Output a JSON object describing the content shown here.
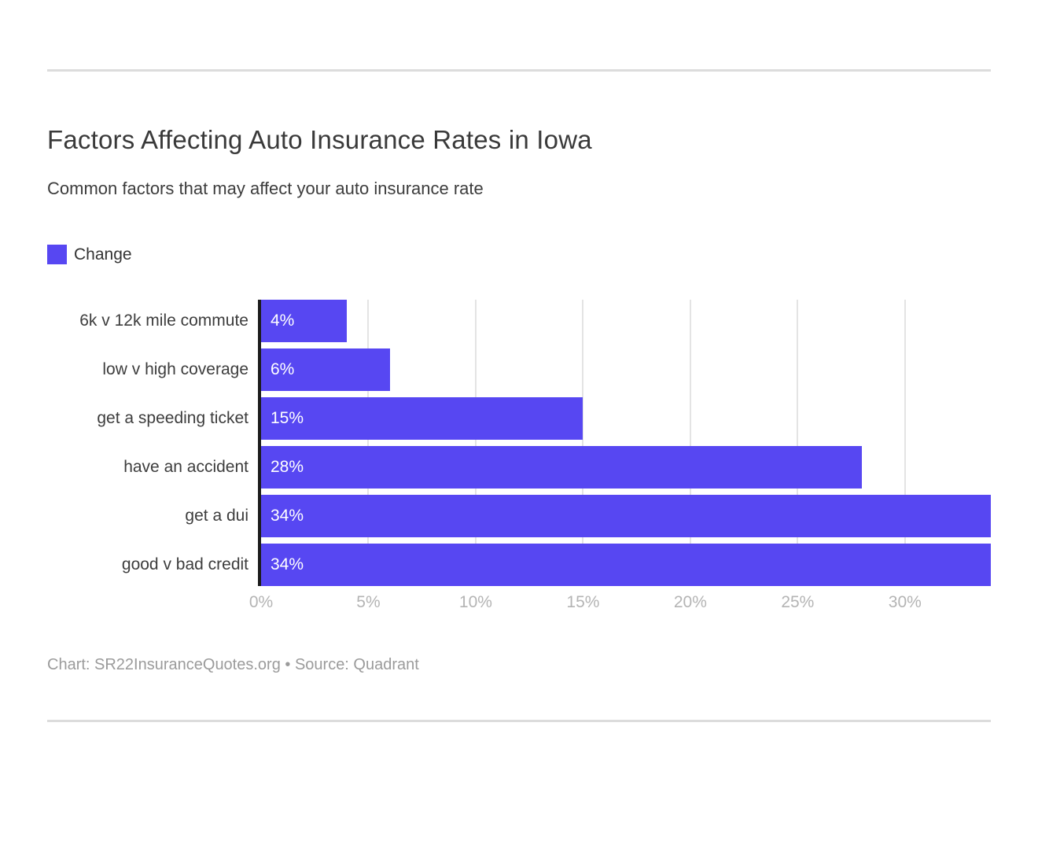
{
  "chart_data": {
    "type": "bar",
    "orientation": "horizontal",
    "title": "Factors Affecting Auto Insurance Rates in Iowa",
    "subtitle": "Common factors that may affect your auto insurance rate",
    "legend": [
      {
        "label": "Change",
        "color": "#5747f2"
      }
    ],
    "legend_position": "top-left",
    "categories": [
      "6k v 12k mile commute",
      "low v high coverage",
      "get a speeding ticket",
      "have an accident",
      "get a dui",
      "good v bad credit"
    ],
    "values": [
      4,
      6,
      15,
      28,
      34,
      34
    ],
    "value_labels": [
      "4%",
      "6%",
      "15%",
      "28%",
      "34%",
      "34%"
    ],
    "xlabel": "",
    "ylabel": "",
    "xlim": [
      0,
      34
    ],
    "x_ticks": [
      "0%",
      "5%",
      "10%",
      "15%",
      "20%",
      "25%",
      "30%"
    ],
    "x_tick_values": [
      0,
      5,
      10,
      15,
      20,
      25,
      30
    ],
    "grid": "vertical"
  },
  "footer": {
    "text": "Chart: SR22InsuranceQuotes.org • Source: Quadrant"
  },
  "colors": {
    "bar": "#5747f2",
    "axis_line": "#1c1c1c",
    "gridline": "#e4e4e4",
    "divider": "#dcdcdc",
    "title_text": "#3a3a3a",
    "category_text": "#3d3d3d",
    "tick_text": "#b4b4b4",
    "footer_text": "#9b9b9b",
    "value_text": "#ffffff"
  }
}
